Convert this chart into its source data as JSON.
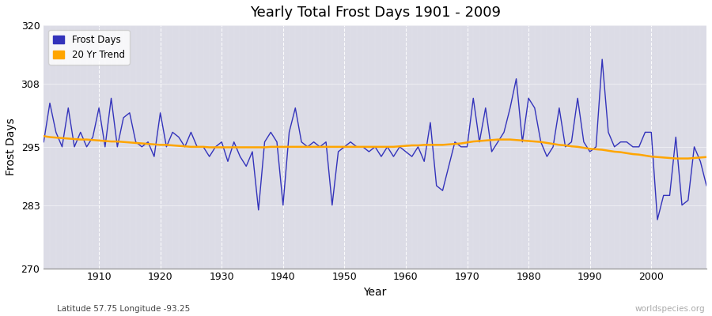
{
  "title": "Yearly Total Frost Days 1901 - 2009",
  "xlabel": "Year",
  "ylabel": "Frost Days",
  "ylim": [
    270,
    320
  ],
  "yticks": [
    270,
    283,
    295,
    308,
    320
  ],
  "xlim": [
    1901,
    2009
  ],
  "plot_bg_color": "#dcdce6",
  "fig_bg_color": "#ffffff",
  "frost_color": "#3333bb",
  "trend_color": "#ffa500",
  "lat_lon_text": "Latitude 57.75 Longitude -93.25",
  "watermark": "worldspecies.org",
  "years": [
    1901,
    1902,
    1903,
    1904,
    1905,
    1906,
    1907,
    1908,
    1909,
    1910,
    1911,
    1912,
    1913,
    1914,
    1915,
    1916,
    1917,
    1918,
    1919,
    1920,
    1921,
    1922,
    1923,
    1924,
    1925,
    1926,
    1927,
    1928,
    1929,
    1930,
    1931,
    1932,
    1933,
    1934,
    1935,
    1936,
    1937,
    1938,
    1939,
    1940,
    1941,
    1942,
    1943,
    1944,
    1945,
    1946,
    1947,
    1948,
    1949,
    1950,
    1951,
    1952,
    1953,
    1954,
    1955,
    1956,
    1957,
    1958,
    1959,
    1960,
    1961,
    1962,
    1963,
    1964,
    1965,
    1966,
    1967,
    1968,
    1969,
    1970,
    1971,
    1972,
    1973,
    1974,
    1975,
    1976,
    1977,
    1978,
    1979,
    1980,
    1981,
    1982,
    1983,
    1984,
    1985,
    1986,
    1987,
    1988,
    1989,
    1990,
    1991,
    1992,
    1993,
    1994,
    1995,
    1996,
    1997,
    1998,
    1999,
    2000,
    2001,
    2002,
    2003,
    2004,
    2005,
    2006,
    2007,
    2008,
    2009
  ],
  "frost_days": [
    296,
    304,
    298,
    295,
    303,
    295,
    298,
    295,
    297,
    303,
    295,
    305,
    295,
    301,
    302,
    296,
    295,
    296,
    293,
    302,
    295,
    298,
    297,
    295,
    298,
    295,
    295,
    293,
    295,
    296,
    292,
    296,
    293,
    291,
    294,
    282,
    296,
    298,
    296,
    283,
    298,
    303,
    296,
    295,
    296,
    295,
    296,
    283,
    294,
    295,
    296,
    295,
    295,
    294,
    295,
    293,
    295,
    293,
    295,
    294,
    293,
    295,
    292,
    300,
    287,
    286,
    291,
    296,
    295,
    295,
    305,
    296,
    303,
    294,
    296,
    298,
    303,
    309,
    296,
    305,
    303,
    296,
    293,
    295,
    303,
    295,
    296,
    305,
    296,
    294,
    295,
    313,
    298,
    295,
    296,
    296,
    295,
    295,
    298,
    298,
    280,
    285,
    285,
    297,
    283,
    284,
    295,
    292,
    287
  ],
  "trend_values": [
    297.2,
    297.0,
    296.9,
    296.8,
    296.7,
    296.6,
    296.5,
    296.5,
    296.4,
    296.3,
    296.2,
    296.1,
    296.1,
    296.0,
    295.9,
    295.8,
    295.7,
    295.6,
    295.5,
    295.4,
    295.4,
    295.3,
    295.2,
    295.1,
    295.0,
    295.0,
    295.0,
    294.9,
    294.9,
    294.9,
    294.9,
    294.9,
    294.9,
    294.9,
    294.9,
    294.9,
    294.9,
    295.0,
    295.0,
    295.0,
    295.0,
    295.0,
    295.0,
    295.0,
    295.0,
    295.0,
    295.0,
    295.0,
    295.0,
    295.0,
    295.0,
    295.0,
    295.0,
    295.0,
    295.0,
    295.0,
    295.0,
    295.0,
    295.1,
    295.2,
    295.3,
    295.3,
    295.4,
    295.4,
    295.4,
    295.4,
    295.5,
    295.6,
    295.7,
    295.9,
    296.1,
    296.2,
    296.3,
    296.4,
    296.5,
    296.5,
    296.5,
    296.4,
    296.3,
    296.2,
    296.1,
    296.0,
    295.8,
    295.6,
    295.4,
    295.3,
    295.1,
    295.0,
    294.8,
    294.6,
    294.5,
    294.4,
    294.2,
    294.0,
    293.9,
    293.7,
    293.5,
    293.4,
    293.2,
    293.0,
    292.9,
    292.8,
    292.7,
    292.6,
    292.6,
    292.6,
    292.7,
    292.8,
    292.9
  ]
}
